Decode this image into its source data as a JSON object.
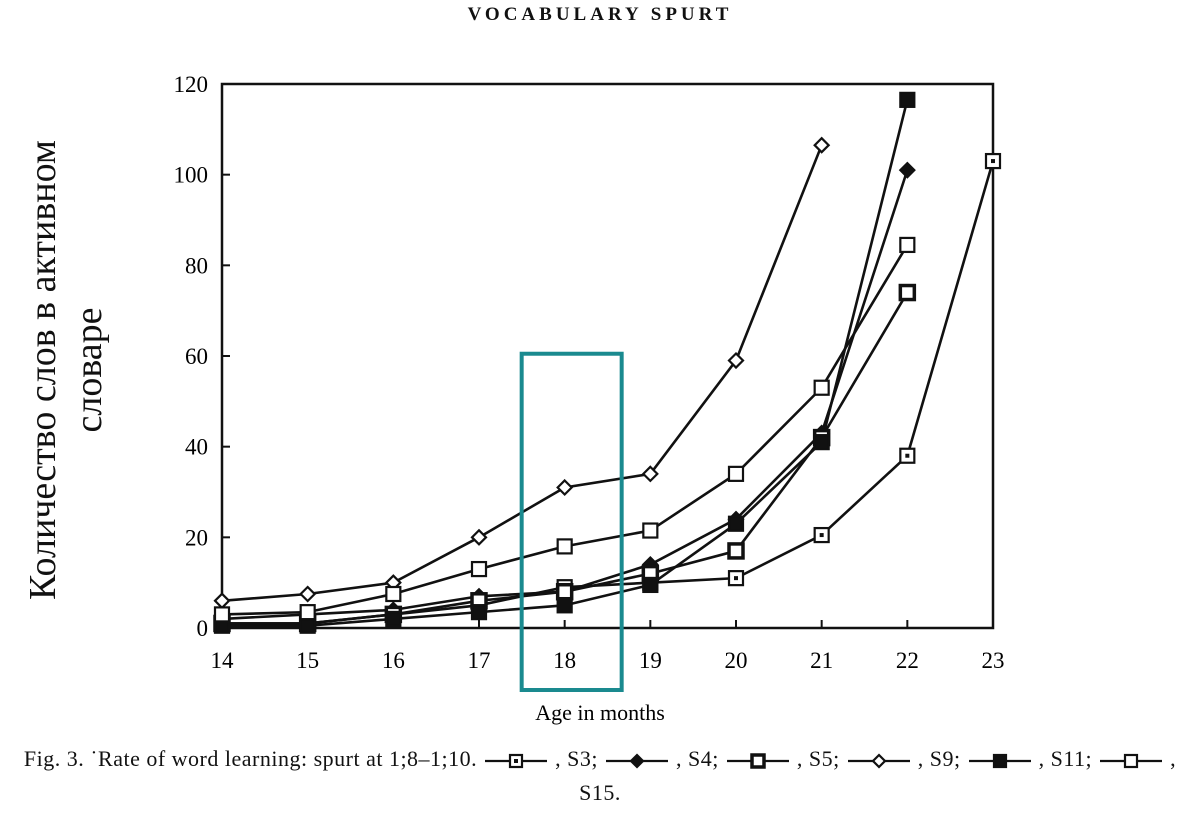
{
  "header": "VOCABULARY SPURT",
  "chart_data": {
    "type": "line",
    "title": "",
    "xlabel": "Age in months",
    "ylabel": "Количество слов в активном словаре",
    "xlim": [
      14,
      23
    ],
    "ylim": [
      0,
      120
    ],
    "x_ticks": [
      "14",
      "15",
      "16",
      "17",
      "18",
      "19",
      "20",
      "21",
      "22",
      "23"
    ],
    "y_ticks": [
      "0",
      "20",
      "40",
      "60",
      "80",
      "100",
      "120"
    ],
    "series": [
      {
        "name": "S3",
        "marker": "square-dot",
        "points": [
          [
            14,
            1
          ],
          [
            15,
            1
          ],
          [
            16,
            3
          ],
          [
            17,
            5
          ],
          [
            18,
            9
          ],
          [
            19,
            10
          ],
          [
            20,
            11
          ],
          [
            21,
            20.5
          ],
          [
            22,
            38
          ],
          [
            23,
            103
          ]
        ]
      },
      {
        "name": "S4",
        "marker": "diamond-filled",
        "points": [
          [
            14,
            2
          ],
          [
            15,
            3
          ],
          [
            16,
            4
          ],
          [
            17,
            7
          ],
          [
            18,
            8
          ],
          [
            19,
            14
          ],
          [
            20,
            24
          ],
          [
            21,
            43
          ],
          [
            22,
            101
          ]
        ]
      },
      {
        "name": "S5",
        "marker": "square-thick",
        "points": [
          [
            14,
            1
          ],
          [
            15,
            1
          ],
          [
            16,
            3
          ],
          [
            17,
            6
          ],
          [
            18,
            8
          ],
          [
            19,
            12
          ],
          [
            20,
            17
          ],
          [
            21,
            42
          ],
          [
            22,
            74
          ]
        ]
      },
      {
        "name": "S9",
        "marker": "diamond-open",
        "points": [
          [
            14,
            6
          ],
          [
            15,
            7.5
          ],
          [
            16,
            10
          ],
          [
            17,
            20
          ],
          [
            18,
            31
          ],
          [
            19,
            34
          ],
          [
            20,
            59
          ],
          [
            21,
            106.5
          ]
        ]
      },
      {
        "name": "S11",
        "marker": "square-filled",
        "points": [
          [
            14,
            0.5
          ],
          [
            15,
            0.5
          ],
          [
            16,
            2
          ],
          [
            17,
            3.5
          ],
          [
            18,
            5
          ],
          [
            19,
            9.5
          ],
          [
            20,
            23
          ],
          [
            21,
            41
          ],
          [
            22,
            116.5
          ]
        ]
      },
      {
        "name": "S15",
        "marker": "square-open",
        "points": [
          [
            14,
            3
          ],
          [
            15,
            3.5
          ],
          [
            16,
            7.5
          ],
          [
            17,
            13
          ],
          [
            18,
            18
          ],
          [
            19,
            21.5
          ],
          [
            20,
            34
          ],
          [
            21,
            53
          ],
          [
            22,
            84.5
          ]
        ]
      }
    ],
    "grid": false,
    "highlight": {
      "x": 18,
      "color": "#1a8a8f"
    }
  },
  "caption": {
    "prefix": "Fig. 3. ˙Rate of word learning: spurt at 1;8–1;10.",
    "items": [
      {
        "label": ", S3;",
        "marker": "square-dot"
      },
      {
        "label": ", S4;",
        "marker": "diamond-filled"
      },
      {
        "label": ", S5;",
        "marker": "square-thick"
      },
      {
        "label": ", S9;",
        "marker": "diamond-open"
      },
      {
        "label": ", S11;",
        "marker": "square-filled"
      },
      {
        "label": ", S15.",
        "marker": "square-open"
      }
    ]
  }
}
